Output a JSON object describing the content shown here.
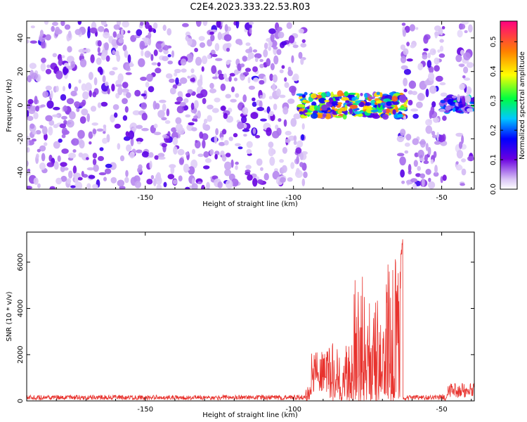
{
  "title": "C2E4.2023.333.22.53.R03",
  "chart_data": [
    {
      "type": "heatmap",
      "xlabel": "Height of straight line (km)",
      "ylabel": "Frequency (Hz)",
      "xlim": [
        -190,
        -39
      ],
      "ylim": [
        -50,
        50
      ],
      "xticks": [
        -150,
        -100,
        -50
      ],
      "yticks": [
        -40,
        -20,
        0,
        20,
        40
      ],
      "grid": false,
      "colorbar": {
        "label": "Normalized spectral amplitude",
        "range": [
          0.0,
          0.57
        ],
        "ticks": [
          0.0,
          0.1,
          0.2,
          0.3,
          0.4,
          0.5
        ]
      },
      "regions": [
        {
          "name": "broadband noise",
          "x": [
            -190,
            -96
          ],
          "y": [
            -50,
            50
          ],
          "amplitude": 0.1
        },
        {
          "name": "signal band",
          "x": [
            -98,
            -62
          ],
          "y": [
            -7,
            7
          ],
          "amplitude_peak": 0.5
        },
        {
          "name": "signal band",
          "x": [
            -50,
            -39
          ],
          "y": [
            -4,
            5
          ],
          "amplitude_peak": 0.3
        },
        {
          "name": "noise",
          "x": [
            -64,
            -49
          ],
          "y": [
            -50,
            50
          ],
          "amplitude": 0.1
        },
        {
          "name": "noise",
          "x": [
            -45,
            -40
          ],
          "y": [
            -50,
            50
          ],
          "amplitude": 0.08
        }
      ]
    },
    {
      "type": "line",
      "xlabel": "Height of straight line (km)",
      "ylabel": "SNR (10 * v/v)",
      "xlim": [
        -190,
        -39
      ],
      "ylim": [
        0,
        7300
      ],
      "xticks": [
        -150,
        -100,
        -50
      ],
      "yticks": [
        0,
        2000,
        4000,
        6000
      ],
      "grid": false,
      "color": "#e8322d",
      "features": [
        {
          "x_range": [
            -190,
            -96
          ],
          "typical_snr": 150
        },
        {
          "x_range": [
            -94,
            -88
          ],
          "typical_snr": 1300
        },
        {
          "x_range": [
            -80,
            -76
          ],
          "peak_snr": 5500
        },
        {
          "x_range": [
            -69,
            -63
          ],
          "peak_snr": 6300
        },
        {
          "x": -63.5,
          "peak_snr": 7250
        },
        {
          "x_range": [
            -62,
            -50
          ],
          "typical_snr": 150
        },
        {
          "x_range": [
            -48,
            -39
          ],
          "typical_snr": 450
        }
      ]
    }
  ]
}
